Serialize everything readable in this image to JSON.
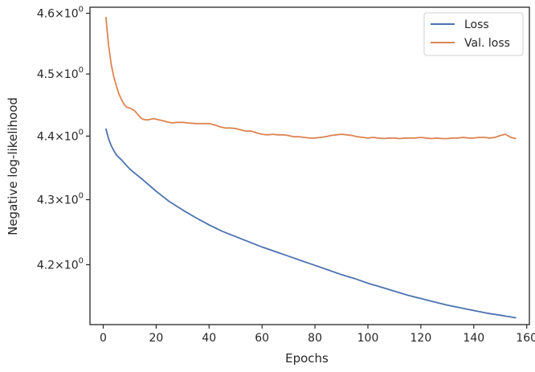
{
  "chart_data": {
    "type": "line",
    "title": "",
    "xlabel": "Epochs",
    "ylabel": "Negative log-likelihood",
    "yscale": "log",
    "grid": false,
    "legend_position": "top-right",
    "xlim": [
      -5,
      161
    ],
    "ylim": [
      4.11,
      4.61
    ],
    "xticks": [
      0,
      20,
      40,
      60,
      80,
      100,
      120,
      140,
      160
    ],
    "xtick_labels": [
      "0",
      "20",
      "40",
      "60",
      "80",
      "100",
      "120",
      "140",
      "160"
    ],
    "yticks": [
      4.2,
      4.3,
      4.4,
      4.5,
      4.6
    ],
    "ytick_labels": [
      {
        "mantissa": "4.2",
        "base": "10",
        "exp": "0"
      },
      {
        "mantissa": "4.3",
        "base": "10",
        "exp": "0"
      },
      {
        "mantissa": "4.4",
        "base": "10",
        "exp": "0"
      },
      {
        "mantissa": "4.5",
        "base": "10",
        "exp": "0"
      },
      {
        "mantissa": "4.6",
        "base": "10",
        "exp": "0"
      }
    ],
    "series": [
      {
        "name": "Loss",
        "color": "#4c72b0",
        "points": [
          [
            1,
            4.412
          ],
          [
            2,
            4.396
          ],
          [
            3,
            4.385
          ],
          [
            4,
            4.377
          ],
          [
            5,
            4.37
          ],
          [
            7,
            4.362
          ],
          [
            10,
            4.348
          ],
          [
            15,
            4.331
          ],
          [
            20,
            4.313
          ],
          [
            25,
            4.297
          ],
          [
            30,
            4.284
          ],
          [
            35,
            4.272
          ],
          [
            40,
            4.261
          ],
          [
            45,
            4.251
          ],
          [
            50,
            4.243
          ],
          [
            55,
            4.235
          ],
          [
            60,
            4.227
          ],
          [
            65,
            4.22
          ],
          [
            70,
            4.213
          ],
          [
            75,
            4.206
          ],
          [
            80,
            4.199
          ],
          [
            85,
            4.192
          ],
          [
            90,
            4.185
          ],
          [
            95,
            4.179
          ],
          [
            100,
            4.172
          ],
          [
            105,
            4.166
          ],
          [
            110,
            4.16
          ],
          [
            115,
            4.154
          ],
          [
            120,
            4.149
          ],
          [
            125,
            4.144
          ],
          [
            130,
            4.139
          ],
          [
            135,
            4.135
          ],
          [
            140,
            4.131
          ],
          [
            145,
            4.127
          ],
          [
            150,
            4.124
          ],
          [
            156,
            4.12
          ]
        ]
      },
      {
        "name": "Val. loss",
        "color": "#dd8452",
        "points": [
          [
            1,
            4.594
          ],
          [
            2,
            4.548
          ],
          [
            3,
            4.516
          ],
          [
            4,
            4.495
          ],
          [
            5,
            4.48
          ],
          [
            6,
            4.467
          ],
          [
            7,
            4.458
          ],
          [
            8,
            4.45
          ],
          [
            9,
            4.446
          ],
          [
            10,
            4.445
          ],
          [
            11,
            4.443
          ],
          [
            12,
            4.44
          ],
          [
            13,
            4.435
          ],
          [
            14,
            4.43
          ],
          [
            15,
            4.427
          ],
          [
            16,
            4.426
          ],
          [
            17,
            4.426
          ],
          [
            18,
            4.427
          ],
          [
            19,
            4.428
          ],
          [
            20,
            4.427
          ],
          [
            22,
            4.425
          ],
          [
            24,
            4.423
          ],
          [
            26,
            4.421
          ],
          [
            28,
            4.422
          ],
          [
            30,
            4.422
          ],
          [
            32,
            4.421
          ],
          [
            35,
            4.42
          ],
          [
            38,
            4.42
          ],
          [
            40,
            4.42
          ],
          [
            42,
            4.418
          ],
          [
            44,
            4.415
          ],
          [
            46,
            4.413
          ],
          [
            48,
            4.413
          ],
          [
            50,
            4.412
          ],
          [
            52,
            4.41
          ],
          [
            54,
            4.408
          ],
          [
            56,
            4.408
          ],
          [
            58,
            4.405
          ],
          [
            60,
            4.403
          ],
          [
            62,
            4.402
          ],
          [
            64,
            4.403
          ],
          [
            66,
            4.402
          ],
          [
            68,
            4.402
          ],
          [
            70,
            4.401
          ],
          [
            72,
            4.399
          ],
          [
            74,
            4.399
          ],
          [
            76,
            4.398
          ],
          [
            78,
            4.397
          ],
          [
            80,
            4.397
          ],
          [
            82,
            4.398
          ],
          [
            84,
            4.399
          ],
          [
            86,
            4.401
          ],
          [
            88,
            4.402
          ],
          [
            90,
            4.403
          ],
          [
            92,
            4.402
          ],
          [
            94,
            4.401
          ],
          [
            96,
            4.399
          ],
          [
            98,
            4.398
          ],
          [
            100,
            4.397
          ],
          [
            102,
            4.398
          ],
          [
            104,
            4.397
          ],
          [
            106,
            4.396
          ],
          [
            108,
            4.397
          ],
          [
            110,
            4.397
          ],
          [
            112,
            4.396
          ],
          [
            114,
            4.397
          ],
          [
            116,
            4.397
          ],
          [
            118,
            4.397
          ],
          [
            120,
            4.398
          ],
          [
            122,
            4.397
          ],
          [
            124,
            4.396
          ],
          [
            126,
            4.397
          ],
          [
            128,
            4.396
          ],
          [
            130,
            4.396
          ],
          [
            132,
            4.397
          ],
          [
            134,
            4.397
          ],
          [
            136,
            4.398
          ],
          [
            138,
            4.397
          ],
          [
            140,
            4.397
          ],
          [
            142,
            4.398
          ],
          [
            144,
            4.398
          ],
          [
            146,
            4.397
          ],
          [
            148,
            4.398
          ],
          [
            150,
            4.401
          ],
          [
            152,
            4.403
          ],
          [
            154,
            4.398
          ],
          [
            156,
            4.396
          ]
        ]
      }
    ]
  }
}
